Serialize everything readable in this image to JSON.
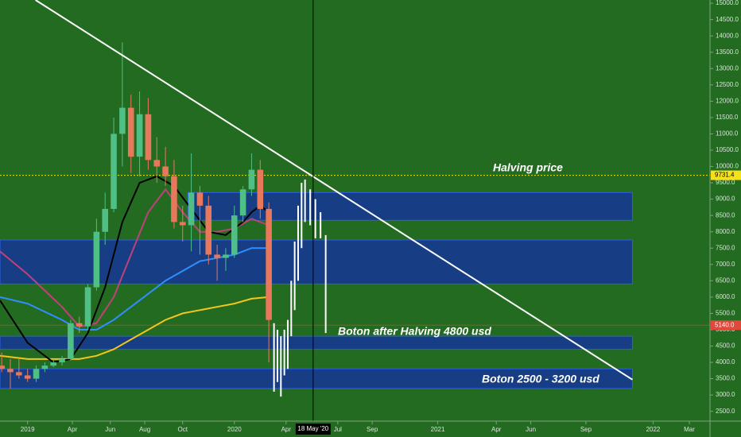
{
  "chart_data": {
    "type": "candlestick",
    "background": "#246b22",
    "up_color": "#4fbf86",
    "down_color": "#e8785c",
    "x": [
      -1.5,
      -1.0,
      -0.5,
      0.0,
      0.5,
      1.0,
      1.5,
      2.0,
      2.5,
      3.0,
      3.5,
      4.0,
      4.5,
      5.0,
      5.5,
      6.0,
      6.5,
      7.0,
      7.5,
      8.0,
      8.5,
      9.0,
      9.5,
      10.0,
      10.5,
      11.0,
      11.5,
      12.0,
      12.5,
      13.0,
      13.5,
      14.0
    ],
    "open": [
      3900,
      3800,
      3700,
      3600,
      3500,
      3800,
      3900,
      4000,
      4100,
      5200,
      5100,
      6300,
      8000,
      8700,
      11000,
      11800,
      10300,
      11600,
      10200,
      10000,
      9700,
      8300,
      8200,
      9200,
      8800,
      7300,
      7200,
      7300,
      8500,
      9300,
      9900,
      8700
    ],
    "high": [
      4300,
      4100,
      4100,
      3800,
      3900,
      4000,
      4100,
      4200,
      5300,
      5400,
      6400,
      8400,
      9200,
      11500,
      13800,
      12200,
      12300,
      12100,
      10900,
      10600,
      10200,
      8800,
      10400,
      9400,
      9100,
      7600,
      7500,
      8800,
      9400,
      10400,
      10200,
      8900
    ],
    "low": [
      3700,
      3200,
      3500,
      3400,
      3400,
      3700,
      3850,
      3900,
      4050,
      4900,
      5000,
      6200,
      7600,
      8600,
      10000,
      9800,
      9700,
      9900,
      9500,
      9400,
      8100,
      7700,
      7400,
      7300,
      7000,
      6500,
      6800,
      7200,
      8300,
      9100,
      8400,
      4000
    ],
    "close": [
      3800,
      3700,
      3600,
      3500,
      3800,
      3900,
      4000,
      4100,
      5200,
      5100,
      6300,
      8000,
      8700,
      11000,
      11800,
      10300,
      11600,
      10200,
      10000,
      9700,
      8300,
      8200,
      9200,
      8800,
      7300,
      7200,
      7300,
      8500,
      9300,
      9900,
      8700,
      5300
    ],
    "xlim": [
      -1.6,
      39.6
    ],
    "ylim": [
      2200,
      15100
    ],
    "xticks": [
      {
        "value": 0,
        "label": "2019"
      },
      {
        "value": 2.6,
        "label": "Apr"
      },
      {
        "value": 4.8,
        "label": "Jun"
      },
      {
        "value": 6.8,
        "label": "Aug"
      },
      {
        "value": 9.0,
        "label": "Oct"
      },
      {
        "value": 12,
        "label": "2020"
      },
      {
        "value": 15,
        "label": "Apr"
      },
      {
        "value": 18,
        "label": "Jul"
      },
      {
        "value": 20,
        "label": "Sep"
      },
      {
        "value": 23.8,
        "label": "2021"
      },
      {
        "value": 27.2,
        "label": "Apr"
      },
      {
        "value": 29.2,
        "label": "Jun"
      },
      {
        "value": 32.4,
        "label": "Sep"
      },
      {
        "value": 36.3,
        "label": "2022"
      },
      {
        "value": 38.4,
        "label": "Mar"
      }
    ],
    "yticks": [
      {
        "value": 2500,
        "label": "2500.0"
      },
      {
        "value": 3000,
        "label": "3000.0"
      },
      {
        "value": 3500,
        "label": "3500.0"
      },
      {
        "value": 4000,
        "label": "4000.0"
      },
      {
        "value": 4500,
        "label": "4500.0"
      },
      {
        "value": 5000,
        "label": "5000.0"
      },
      {
        "value": 5500,
        "label": "5500.0"
      },
      {
        "value": 6000,
        "label": "6000.0"
      },
      {
        "value": 6500,
        "label": "6500.0"
      },
      {
        "value": 7000,
        "label": "7000.0"
      },
      {
        "value": 7500,
        "label": "7500.0"
      },
      {
        "value": 8000,
        "label": "8000.0"
      },
      {
        "value": 8500,
        "label": "8500.0"
      },
      {
        "value": 9000,
        "label": "9000.0"
      },
      {
        "value": 9500,
        "label": "9500.0"
      },
      {
        "value": 10000,
        "label": "10000.0"
      },
      {
        "value": 10500,
        "label": "10500.0"
      },
      {
        "value": 11000,
        "label": "11000.0"
      },
      {
        "value": 11500,
        "label": "11500.0"
      },
      {
        "value": 12000,
        "label": "12000.0"
      },
      {
        "value": 12500,
        "label": "12500.0"
      },
      {
        "value": 13000,
        "label": "13000.0"
      },
      {
        "value": 13500,
        "label": "13500.0"
      },
      {
        "value": 14000,
        "label": "14000.0"
      },
      {
        "value": 14500,
        "label": "14500.0"
      },
      {
        "value": 15000,
        "label": "15000.0"
      }
    ],
    "ma_lines": [
      {
        "color": "#f5c518",
        "x": [
          -1.6,
          0,
          2,
          3,
          4,
          5,
          6,
          7,
          8,
          9,
          10,
          11,
          12,
          13,
          14
        ],
        "values": [
          4200,
          4100,
          4100,
          4100,
          4200,
          4400,
          4700,
          5000,
          5300,
          5500,
          5600,
          5700,
          5800,
          5950,
          6000
        ]
      },
      {
        "color": "#2f8fff",
        "x": [
          -1.6,
          0,
          2,
          3,
          4,
          5,
          6,
          7,
          8,
          9,
          10,
          11,
          12,
          13,
          14
        ],
        "values": [
          6000,
          5800,
          5300,
          5000,
          5000,
          5300,
          5700,
          6100,
          6500,
          6800,
          7100,
          7200,
          7300,
          7500,
          7500
        ]
      },
      {
        "color": "#c0407a",
        "x": [
          -1.6,
          0,
          2,
          3,
          4,
          5,
          6,
          7,
          8,
          9,
          10,
          11,
          12,
          13,
          14
        ],
        "values": [
          7400,
          6700,
          5700,
          5100,
          5200,
          6000,
          7300,
          8600,
          9300,
          8600,
          8000,
          8000,
          8100,
          8400,
          8200
        ]
      },
      {
        "color": "#000000",
        "x": [
          -1.6,
          0,
          1.5,
          2.5,
          3.5,
          4.5,
          5.5,
          6.5,
          7.5,
          8.5,
          9.5,
          10.5,
          11.5,
          12.5,
          13.0,
          13.5,
          14.0
        ],
        "values": [
          5900,
          4600,
          4000,
          4100,
          4900,
          6300,
          8300,
          9500,
          9700,
          9400,
          8700,
          8000,
          7900,
          8300,
          8600,
          8800,
          8600
        ]
      }
    ],
    "projection": {
      "color": "#ffffff",
      "x": [
        14.3,
        14.5,
        14.7,
        14.9,
        15.1,
        15.3,
        15.5,
        15.7,
        15.9,
        16.1,
        16.4,
        16.7,
        17.0,
        17.3
      ],
      "low": [
        3100,
        3400,
        2950,
        3600,
        3800,
        4800,
        5600,
        6500,
        7500,
        8300,
        8200,
        7800,
        7800,
        4900
      ],
      "high": [
        5200,
        5000,
        4800,
        5000,
        5300,
        6500,
        7700,
        8800,
        9500,
        9600,
        9300,
        9000,
        8600,
        7900
      ]
    },
    "zones": [
      {
        "from": 9.3,
        "to": 35.1,
        "low": 8350,
        "high": 9200
      },
      {
        "from": -1.6,
        "to": 35.1,
        "low": 6400,
        "high": 7750
      },
      {
        "from": -1.6,
        "to": 35.1,
        "low": 4400,
        "high": 4800
      },
      {
        "from": -1.6,
        "to": 35.1,
        "low": 3200,
        "high": 3800
      }
    ],
    "trendline": {
      "color": "#ffffff",
      "x": [
        0.46,
        35.1
      ],
      "values": [
        15100,
        3470
      ]
    },
    "price_lines": [
      {
        "value": 9731.4,
        "label": 9731.4,
        "color": "#f5e11a"
      },
      {
        "value": 5140,
        "label": "5140.0",
        "color": "#e0483a"
      }
    ],
    "crosshair": {
      "x": 16.57,
      "label": "18 May '20"
    },
    "annotations": [
      "Halving price",
      "Boton after Halving 4800 usd",
      "Boton 2500 - 3200 usd"
    ]
  }
}
